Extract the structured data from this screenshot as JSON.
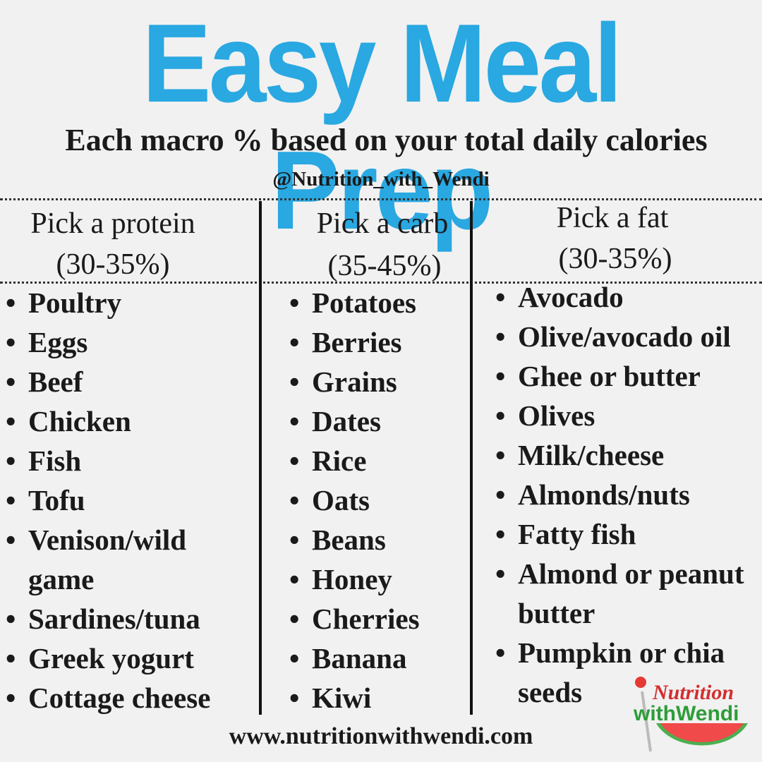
{
  "header": {
    "title": "Easy Meal Prep",
    "subtitle": "Each macro % based on your total daily calories",
    "handle": "@Nutrition_with_Wendi"
  },
  "columns": [
    {
      "heading": "Pick a protein",
      "range": "(30-35%)",
      "items": [
        "Poultry",
        "Eggs",
        "Beef",
        "Chicken",
        "Fish",
        "Tofu",
        "Venison/wild game",
        "Sardines/tuna",
        "Greek yogurt",
        " Cottage cheese"
      ]
    },
    {
      "heading": "Pick a carb",
      "range": "(35-45%)",
      "items": [
        "Potatoes",
        "Berries",
        "Grains",
        "Dates",
        "Rice",
        "Oats",
        "Beans",
        "Honey",
        "Cherries",
        "Banana",
        "Kiwi"
      ]
    },
    {
      "heading": "Pick a fat",
      "range": "(30-35%)",
      "items": [
        "Avocado",
        "Olive/avocado oil",
        "Ghee or butter",
        "Olives",
        "Milk/cheese",
        "Almonds/nuts",
        "Fatty fish",
        "Almond or peanut butter",
        "Pumpkin or chia seeds"
      ]
    }
  ],
  "footer": {
    "url": "www.nutritionwithwendi.com"
  },
  "logo": {
    "line1": "Nutrition",
    "line2": "withWendi"
  }
}
